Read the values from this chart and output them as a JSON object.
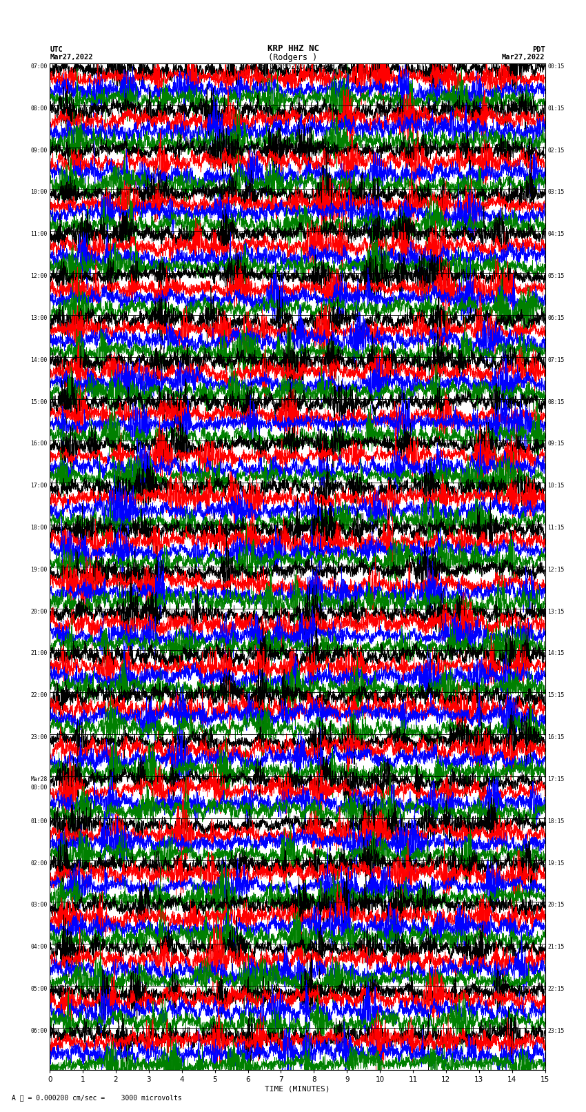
{
  "title_line1": "KRP HHZ NC",
  "title_line2": "(Rodgers )",
  "scale_bar_label": "= 0.000200 cm/sec",
  "scale_value_label": "3000 microvolts",
  "utc_label": "UTC",
  "utc_date": "Mar27,2022",
  "pdt_label": "PDT",
  "pdt_date": "Mar27,2022",
  "xlabel": "TIME (MINUTES)",
  "xlim": [
    0,
    15
  ],
  "xticks": [
    0,
    1,
    2,
    3,
    4,
    5,
    6,
    7,
    8,
    9,
    10,
    11,
    12,
    13,
    14,
    15
  ],
  "left_times": [
    "07:00",
    "08:00",
    "09:00",
    "10:00",
    "11:00",
    "12:00",
    "13:00",
    "14:00",
    "15:00",
    "16:00",
    "17:00",
    "18:00",
    "19:00",
    "20:00",
    "21:00",
    "22:00",
    "23:00",
    "Mar28\n00:00",
    "01:00",
    "02:00",
    "03:00",
    "04:00",
    "05:00",
    "06:00"
  ],
  "right_times": [
    "00:15",
    "01:15",
    "02:15",
    "03:15",
    "04:15",
    "05:15",
    "06:15",
    "07:15",
    "08:15",
    "09:15",
    "10:15",
    "11:15",
    "12:15",
    "13:15",
    "14:15",
    "15:15",
    "16:15",
    "17:15",
    "18:15",
    "19:15",
    "20:15",
    "21:15",
    "22:15",
    "23:15"
  ],
  "n_rows": 24,
  "colors": [
    "black",
    "red",
    "blue",
    "green"
  ],
  "bg_color": "white",
  "figsize": [
    8.5,
    16.13
  ],
  "dpi": 100
}
